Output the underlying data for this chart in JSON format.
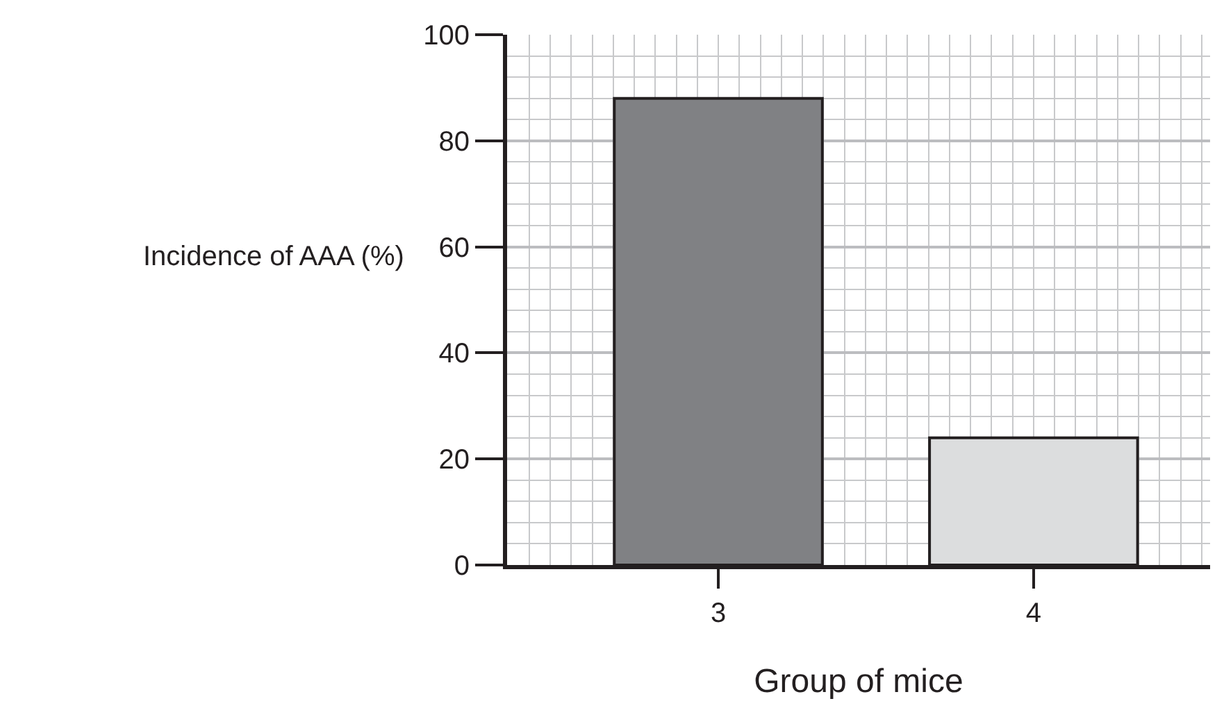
{
  "chart_data": {
    "type": "bar",
    "xlabel": "Group of mice",
    "ylabel": "Incidence of AAA (%)",
    "categories": [
      "3",
      "4"
    ],
    "values": [
      88,
      24
    ],
    "colors": [
      "#808184",
      "#dcddde"
    ],
    "ylim": [
      0,
      100
    ],
    "yticks": [
      0,
      20,
      40,
      60,
      80,
      100
    ],
    "grid": true
  }
}
